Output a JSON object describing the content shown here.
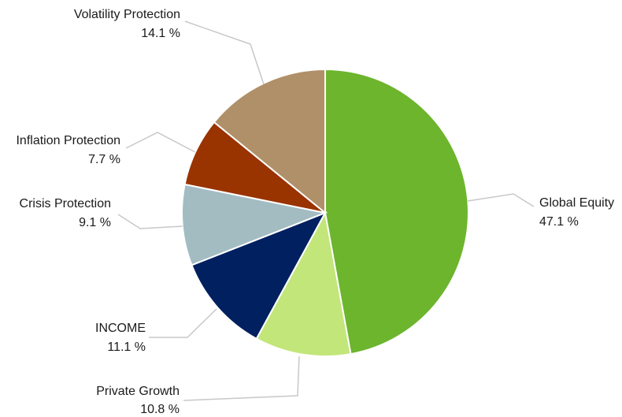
{
  "chart_data": {
    "type": "pie",
    "title": "",
    "start_angle_deg": 0,
    "direction": "clockwise",
    "legend": "none",
    "slices": [
      {
        "name": "Global Equity",
        "value": 47.1,
        "label": "47.1 %",
        "color": "#6cb52d"
      },
      {
        "name": "Private Growth",
        "value": 10.8,
        "label": "10.8 %",
        "color": "#c2e67a"
      },
      {
        "name": "INCOME",
        "value": 11.1,
        "label": "11.1 %",
        "color": "#002060"
      },
      {
        "name": "Crisis Protection",
        "value": 9.1,
        "label": "9.1 %",
        "color": "#a2bcc2"
      },
      {
        "name": "Inflation Protection",
        "value": 7.7,
        "label": "7.7 %",
        "color": "#993300"
      },
      {
        "name": "Volatility Protection",
        "value": 14.1,
        "label": "14.1 %",
        "color": "#b09069"
      }
    ]
  }
}
